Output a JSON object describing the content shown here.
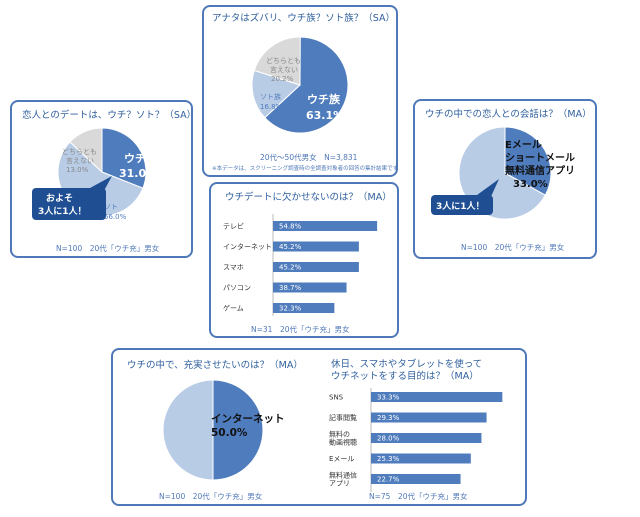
{
  "chart_data": [
    {
      "type": "pie",
      "title": "アナタはズバリ、ウチ族？ソト族？（SA）",
      "slices": [
        {
          "label": "ウチ族",
          "value": 63.1
        },
        {
          "label": "ソト族",
          "value": 16.8
        },
        {
          "label": "どちらとも言えない",
          "value": 20.2
        }
      ],
      "labels_text": {
        "uchi": "ウチ族",
        "soto": "ソト族",
        "dochira1": "どちらとも",
        "dochira2": "言えない"
      },
      "value_text": {
        "uchi": "63.1%",
        "soto": "16.8%",
        "dochira": "20.2%"
      },
      "footnote": "20代〜50代男女　N=3,831",
      "note": "※本データは、スクリーニング調査時の全調査対象者の回答の集計結果です"
    },
    {
      "type": "pie",
      "title": "恋人とのデートは、ウチ？ソト？（SA）",
      "slices": [
        {
          "label": "ウチ",
          "value": 31.0
        },
        {
          "label": "ソト",
          "value": 56.0
        },
        {
          "label": "どちらとも言えない",
          "value": 13.0
        }
      ],
      "labels_text": {
        "uchi": "ウチ",
        "soto": "ソト",
        "dochira1": "どちらとも",
        "dochira2": "言えない"
      },
      "value_text": {
        "uchi": "31.0%",
        "soto": "56.0%",
        "dochira": "13.0%"
      },
      "callout": [
        "およそ",
        "3人に1人！"
      ],
      "footnote": "N=100　20代「ウチ充」男女"
    },
    {
      "type": "bar",
      "title": "ウチデートに欠かせないのは？（MA）",
      "categories": [
        "テレビ",
        "インターネット",
        "スマホ",
        "パソコン",
        "ゲーム"
      ],
      "values": [
        54.8,
        45.2,
        45.2,
        38.7,
        32.3
      ],
      "value_labels": [
        "54.8%",
        "45.2%",
        "45.2%",
        "38.7%",
        "32.3%"
      ],
      "xlim": [
        0,
        60
      ],
      "footnote": "N=31　20代「ウチ充」男女"
    },
    {
      "type": "pie",
      "title": "ウチの中での恋人との会話は？（MA）",
      "slices": [
        {
          "label": "Eメール ショートメール 無料通信アプリ",
          "value": 33.0
        },
        {
          "label": "その他",
          "value": 67.0
        }
      ],
      "labels_text": {
        "l1": "Eメール",
        "l2": "ショートメール",
        "l3": "無料通信アプリ"
      },
      "value_text": {
        "main": "33.0%"
      },
      "callout": [
        "3人に1人！"
      ],
      "footnote": "N=100　20代「ウチ充」男女"
    },
    {
      "type": "pie",
      "title": "ウチの中で、充実させたいのは？（MA）",
      "slices": [
        {
          "label": "インターネット",
          "value": 50.0
        },
        {
          "label": "その他",
          "value": 50.0
        }
      ],
      "labels_text": {
        "main": "インターネット"
      },
      "value_text": {
        "main": "50.0%"
      },
      "footnote": "N=100　20代「ウチ充」男女"
    },
    {
      "type": "bar",
      "title": [
        "休日、スマホやタブレットを使って",
        "ウチネットをする目的は？（MA）"
      ],
      "categories": [
        [
          "SNS"
        ],
        [
          "記事閲覧"
        ],
        [
          "無料の",
          "動画視聴"
        ],
        [
          "Eメール"
        ],
        [
          "無料通信",
          "アプリ"
        ]
      ],
      "values": [
        33.3,
        29.3,
        28.0,
        25.3,
        22.7
      ],
      "value_labels": [
        "33.3%",
        "29.3%",
        "28.0%",
        "25.3%",
        "22.7%"
      ],
      "xlim": [
        0,
        36
      ],
      "footnote": "N=75　20代「ウチ充」男女"
    }
  ],
  "colors": {
    "primary": "#4f7cbd",
    "light": "#b9cce6",
    "grey": "#d9d9d9",
    "title": "#2f5f9e",
    "border": "#4f78b8",
    "callout": "#1f4f92"
  }
}
